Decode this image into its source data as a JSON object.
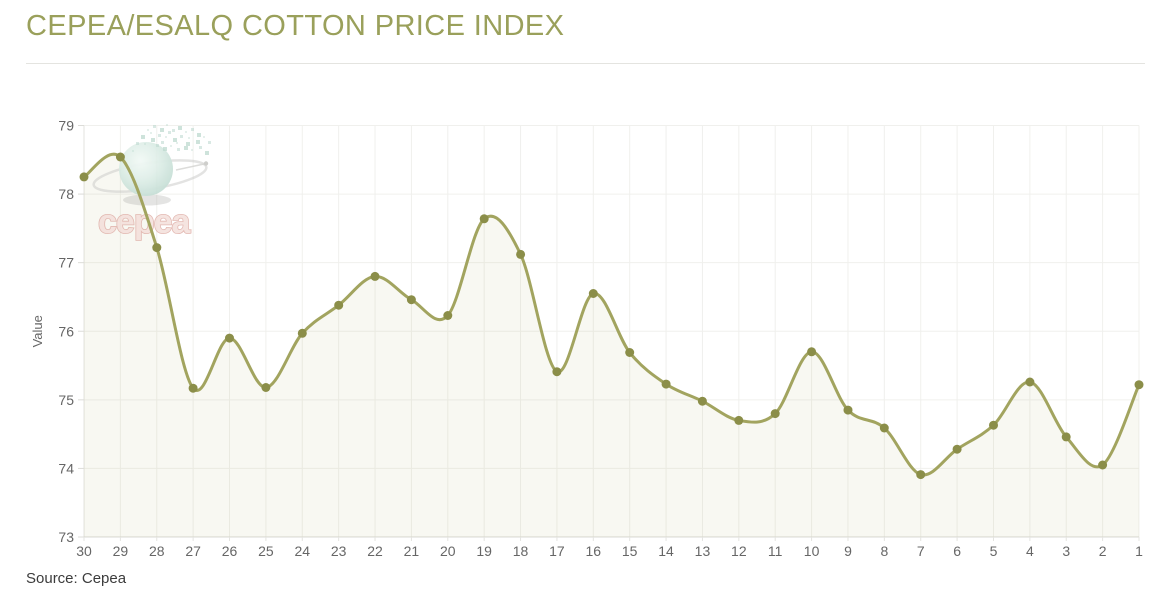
{
  "page": {
    "title": "CEPEA/ESALQ COTTON PRICE INDEX",
    "source": "Source: Cepea"
  },
  "watermark": {
    "text": "cepea"
  },
  "chart_data": {
    "type": "area",
    "title": "CEPEA/ESALQ COTTON PRICE INDEX",
    "x": [
      "30",
      "29",
      "28",
      "27",
      "26",
      "25",
      "24",
      "23",
      "22",
      "21",
      "20",
      "19",
      "18",
      "17",
      "16",
      "15",
      "14",
      "13",
      "12",
      "11",
      "10",
      "9",
      "8",
      "7",
      "6",
      "5",
      "4",
      "3",
      "2",
      "1"
    ],
    "series": [
      {
        "name": "Cotton Price Index",
        "values": [
          78.25,
          78.54,
          77.22,
          75.17,
          75.9,
          75.18,
          75.97,
          76.38,
          76.8,
          76.46,
          76.23,
          77.64,
          77.12,
          75.41,
          76.55,
          75.69,
          75.23,
          74.98,
          74.7,
          74.8,
          75.7,
          74.85,
          74.59,
          73.91,
          74.28,
          74.63,
          75.26,
          74.46,
          74.05,
          75.22
        ]
      }
    ],
    "xlabel": "",
    "ylabel": "Value",
    "ylim": [
      73,
      79
    ],
    "yticks": [
      73,
      74,
      75,
      76,
      77,
      78,
      79
    ],
    "grid": true,
    "legend": false,
    "smooth": true,
    "markers": true,
    "colors": {
      "line": "#a2a45f",
      "marker": "#8b8e49",
      "fill": "rgba(162,164,95,0.08)",
      "axis_text": "#666666",
      "grid": "#f0f0ed",
      "axis_line": "#e3e3df",
      "baseline": "#d9d9d5",
      "title": "#9aa05b"
    }
  }
}
